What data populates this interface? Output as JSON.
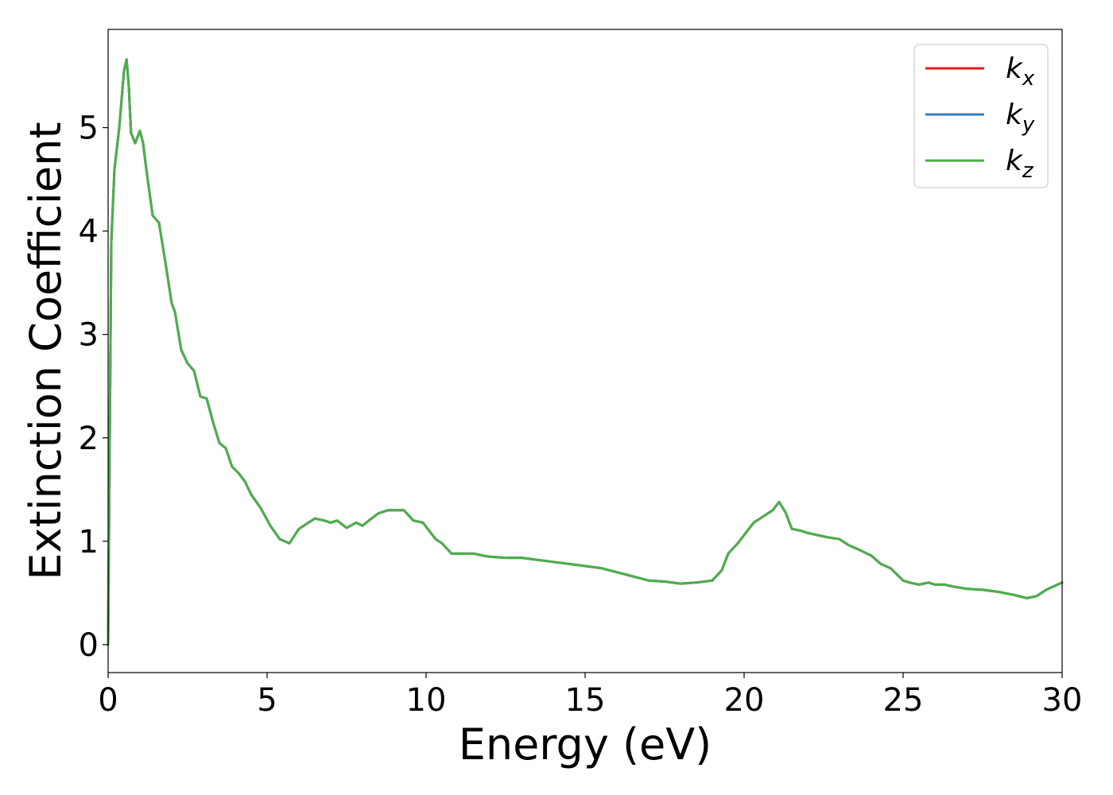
{
  "chart_data": {
    "type": "line",
    "title": "",
    "xlabel": "Energy (eV)",
    "ylabel": "Extinction Coefficient",
    "xlim": [
      0,
      30
    ],
    "ylim": [
      -0.27,
      5.95
    ],
    "xticks": [
      0,
      5,
      10,
      15,
      20,
      25,
      30
    ],
    "yticks": [
      0,
      1,
      2,
      3,
      4,
      5
    ],
    "grid": false,
    "legend_position": "top-right",
    "x": [
      0,
      0.1,
      0.2,
      0.35,
      0.5,
      0.58,
      0.65,
      0.72,
      0.85,
      1.0,
      1.1,
      1.2,
      1.4,
      1.6,
      1.8,
      2.0,
      2.1,
      2.3,
      2.5,
      2.7,
      2.9,
      3.1,
      3.3,
      3.5,
      3.7,
      3.9,
      4.1,
      4.3,
      4.5,
      4.8,
      5.1,
      5.4,
      5.7,
      6.0,
      6.3,
      6.5,
      6.8,
      7.0,
      7.2,
      7.5,
      7.8,
      8.0,
      8.2,
      8.5,
      8.8,
      9.0,
      9.3,
      9.6,
      9.9,
      10.1,
      10.3,
      10.5,
      10.8,
      11.0,
      11.2,
      11.5,
      11.8,
      12.0,
      12.5,
      13.0,
      13.5,
      14.0,
      14.5,
      15.0,
      15.5,
      16.0,
      16.5,
      17.0,
      17.5,
      18.0,
      18.5,
      19.0,
      19.3,
      19.5,
      19.8,
      20.0,
      20.3,
      20.6,
      20.9,
      21.1,
      21.3,
      21.5,
      21.8,
      22.0,
      22.3,
      22.6,
      23.0,
      23.3,
      23.6,
      24.0,
      24.3,
      24.6,
      25.0,
      25.2,
      25.5,
      25.8,
      26.0,
      26.3,
      26.6,
      27.0,
      27.5,
      28.0,
      28.5,
      28.9,
      29.2,
      29.5,
      30.0
    ],
    "series": [
      {
        "name": "k_x",
        "values": [
          0,
          3.9,
          4.6,
          5.0,
          5.55,
          5.66,
          5.4,
          4.95,
          4.85,
          4.97,
          4.85,
          4.6,
          4.15,
          4.08,
          3.7,
          3.3,
          3.22,
          2.85,
          2.72,
          2.65,
          2.4,
          2.38,
          2.15,
          1.95,
          1.9,
          1.72,
          1.66,
          1.58,
          1.45,
          1.32,
          1.15,
          1.02,
          0.98,
          1.12,
          1.18,
          1.22,
          1.2,
          1.18,
          1.2,
          1.13,
          1.18,
          1.15,
          1.2,
          1.27,
          1.3,
          1.3,
          1.3,
          1.2,
          1.18,
          1.1,
          1.02,
          0.98,
          0.88,
          0.88,
          0.88,
          0.88,
          0.86,
          0.85,
          0.84,
          0.84,
          0.82,
          0.8,
          0.78,
          0.76,
          0.74,
          0.7,
          0.66,
          0.62,
          0.61,
          0.59,
          0.6,
          0.62,
          0.72,
          0.88,
          0.98,
          1.06,
          1.18,
          1.24,
          1.3,
          1.38,
          1.28,
          1.12,
          1.1,
          1.08,
          1.06,
          1.04,
          1.02,
          0.96,
          0.92,
          0.86,
          0.78,
          0.74,
          0.62,
          0.6,
          0.58,
          0.6,
          0.58,
          0.58,
          0.56,
          0.54,
          0.53,
          0.51,
          0.48,
          0.45,
          0.47,
          0.53,
          0.6
        ]
      },
      {
        "name": "k_y",
        "values": [
          0,
          3.9,
          4.6,
          5.0,
          5.55,
          5.66,
          5.4,
          4.95,
          4.85,
          4.97,
          4.85,
          4.6,
          4.15,
          4.08,
          3.7,
          3.3,
          3.22,
          2.85,
          2.72,
          2.65,
          2.4,
          2.38,
          2.15,
          1.95,
          1.9,
          1.72,
          1.66,
          1.58,
          1.45,
          1.32,
          1.15,
          1.02,
          0.98,
          1.12,
          1.18,
          1.22,
          1.2,
          1.18,
          1.2,
          1.13,
          1.18,
          1.15,
          1.2,
          1.27,
          1.3,
          1.3,
          1.3,
          1.2,
          1.18,
          1.1,
          1.02,
          0.98,
          0.88,
          0.88,
          0.88,
          0.88,
          0.86,
          0.85,
          0.84,
          0.84,
          0.82,
          0.8,
          0.78,
          0.76,
          0.74,
          0.7,
          0.66,
          0.62,
          0.61,
          0.59,
          0.6,
          0.62,
          0.72,
          0.88,
          0.98,
          1.06,
          1.18,
          1.24,
          1.3,
          1.38,
          1.28,
          1.12,
          1.1,
          1.08,
          1.06,
          1.04,
          1.02,
          0.96,
          0.92,
          0.86,
          0.78,
          0.74,
          0.62,
          0.6,
          0.58,
          0.6,
          0.58,
          0.58,
          0.56,
          0.54,
          0.53,
          0.51,
          0.48,
          0.45,
          0.47,
          0.53,
          0.6
        ]
      },
      {
        "name": "k_z",
        "values": [
          0,
          3.9,
          4.6,
          5.0,
          5.55,
          5.66,
          5.4,
          4.95,
          4.85,
          4.97,
          4.85,
          4.6,
          4.15,
          4.08,
          3.7,
          3.3,
          3.22,
          2.85,
          2.72,
          2.65,
          2.4,
          2.38,
          2.15,
          1.95,
          1.9,
          1.72,
          1.66,
          1.58,
          1.45,
          1.32,
          1.15,
          1.02,
          0.98,
          1.12,
          1.18,
          1.22,
          1.2,
          1.18,
          1.2,
          1.13,
          1.18,
          1.15,
          1.2,
          1.27,
          1.3,
          1.3,
          1.3,
          1.2,
          1.18,
          1.1,
          1.02,
          0.98,
          0.88,
          0.88,
          0.88,
          0.88,
          0.86,
          0.85,
          0.84,
          0.84,
          0.82,
          0.8,
          0.78,
          0.76,
          0.74,
          0.7,
          0.66,
          0.62,
          0.61,
          0.59,
          0.6,
          0.62,
          0.72,
          0.88,
          0.98,
          1.06,
          1.18,
          1.24,
          1.3,
          1.38,
          1.28,
          1.12,
          1.1,
          1.08,
          1.06,
          1.04,
          1.02,
          0.96,
          0.92,
          0.86,
          0.78,
          0.74,
          0.62,
          0.6,
          0.58,
          0.6,
          0.58,
          0.58,
          0.56,
          0.54,
          0.53,
          0.51,
          0.48,
          0.45,
          0.47,
          0.53,
          0.6
        ]
      }
    ],
    "legend": [
      {
        "base": "k",
        "sub": "x",
        "color": "#e41a1c"
      },
      {
        "base": "k",
        "sub": "y",
        "color": "#377eb8"
      },
      {
        "base": "k",
        "sub": "z",
        "color": "#4daf4a"
      }
    ]
  }
}
